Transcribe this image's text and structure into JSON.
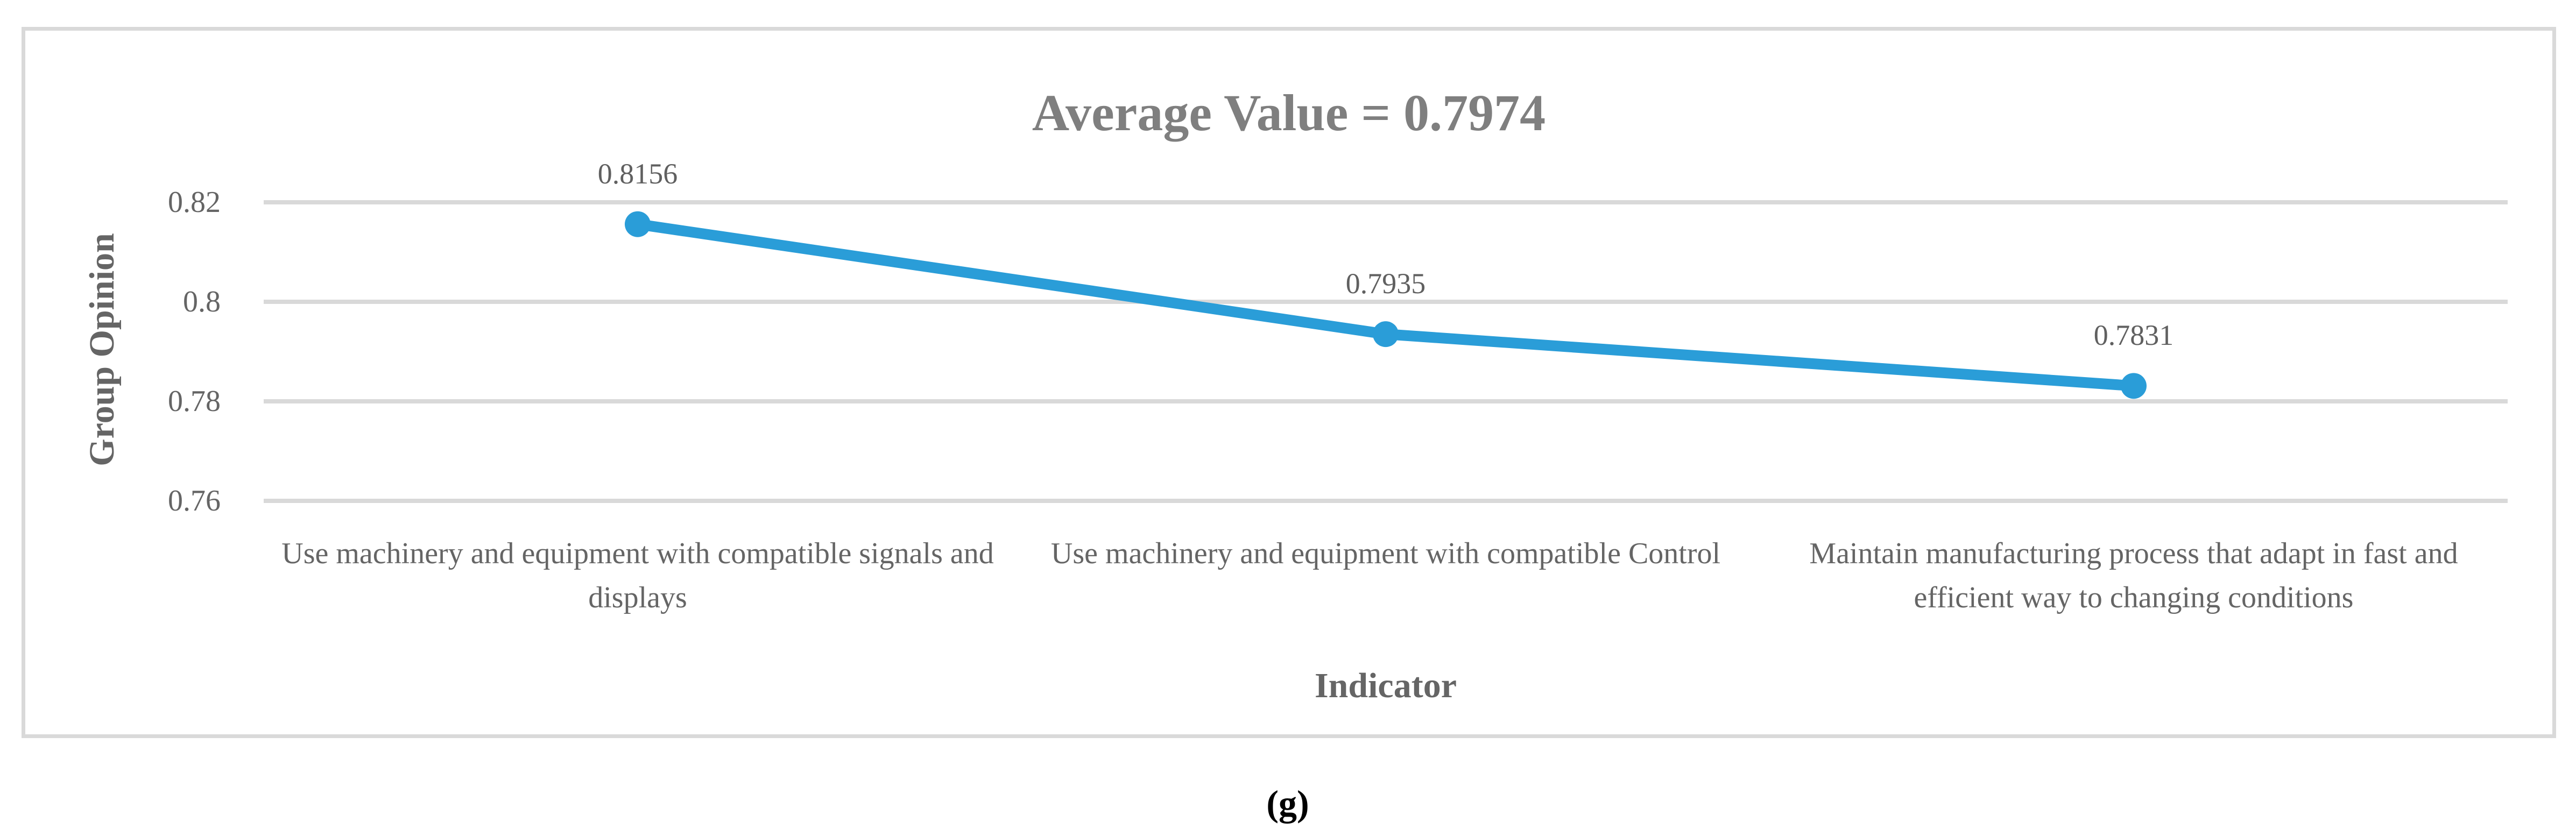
{
  "figure": {
    "caption": "(g)"
  },
  "chart_data": {
    "type": "line",
    "title": "Average Value = 0.7974",
    "xlabel": "Indicator",
    "ylabel": "Group Opinion",
    "categories": [
      "Use machinery and equipment with compatible signals and displays",
      "Use machinery and equipment with compatible Control",
      "Maintain manufacturing process that adapt in fast and efficient way to changing conditions"
    ],
    "series": [
      {
        "name": "Group Opinion",
        "values": [
          0.8156,
          0.7935,
          0.7831
        ]
      }
    ],
    "data_labels": [
      "0.8156",
      "0.7935",
      "0.7831"
    ],
    "average_value": 0.7974,
    "y_ticks": [
      0.82,
      0.8,
      0.78,
      0.76
    ],
    "y_tick_labels": [
      "0.82",
      "0.8",
      "0.78",
      "0.76"
    ],
    "ylim": [
      0.76,
      0.82
    ],
    "grid": "horizontal-only",
    "legend_position": "none",
    "marker": "circle",
    "colors": {
      "series": "#2A9DD8",
      "gridline": "#D9D9D9",
      "plot_border": "#D9D9D9",
      "title_text": "#7F7F7F",
      "axis_text": "#656565",
      "data_label_text": "#606060",
      "caption_text": "#000000"
    }
  }
}
